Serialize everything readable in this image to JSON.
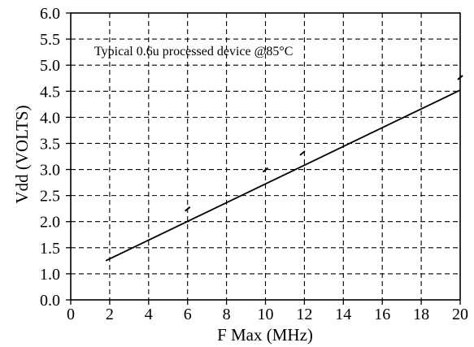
{
  "chart_data": {
    "type": "line",
    "title": "",
    "xlabel": "F Max (MHz)",
    "ylabel": "Vdd (VOLTS)",
    "xlim": [
      0,
      20
    ],
    "xticks": [
      0,
      2,
      4,
      6,
      8,
      10,
      12,
      14,
      16,
      18,
      20
    ],
    "xtick_labels": [
      "0",
      "2",
      "4",
      "6",
      "8",
      "10",
      "12",
      "14",
      "16",
      "18",
      "20"
    ],
    "ytick_labels": [
      "0.0",
      "1.0",
      "1.5",
      "2.0",
      "2.5",
      "3.0",
      "3.5",
      "4.0",
      "4.5",
      "5.0",
      "5.5",
      "6.0"
    ],
    "y_axis_note": "non-linear: 0.0 at bottom, then 1.0 to 6.0 in 0.5 steps at equal spacing",
    "grid": "dashed, both axes",
    "annotation": "Typical 0.6u processed device @85°C",
    "series": [
      {
        "line": true,
        "x": [
          1.8,
          20
        ],
        "y": [
          1.25,
          4.52
        ]
      },
      {
        "markers": "small tick marks",
        "x": [
          6.0,
          10.0,
          11.9,
          20.0
        ],
        "y": [
          2.25,
          3.0,
          3.32,
          4.77
        ]
      }
    ],
    "colors": {
      "line": "#000000",
      "grid": "#000000",
      "background": "#ffffff"
    }
  }
}
